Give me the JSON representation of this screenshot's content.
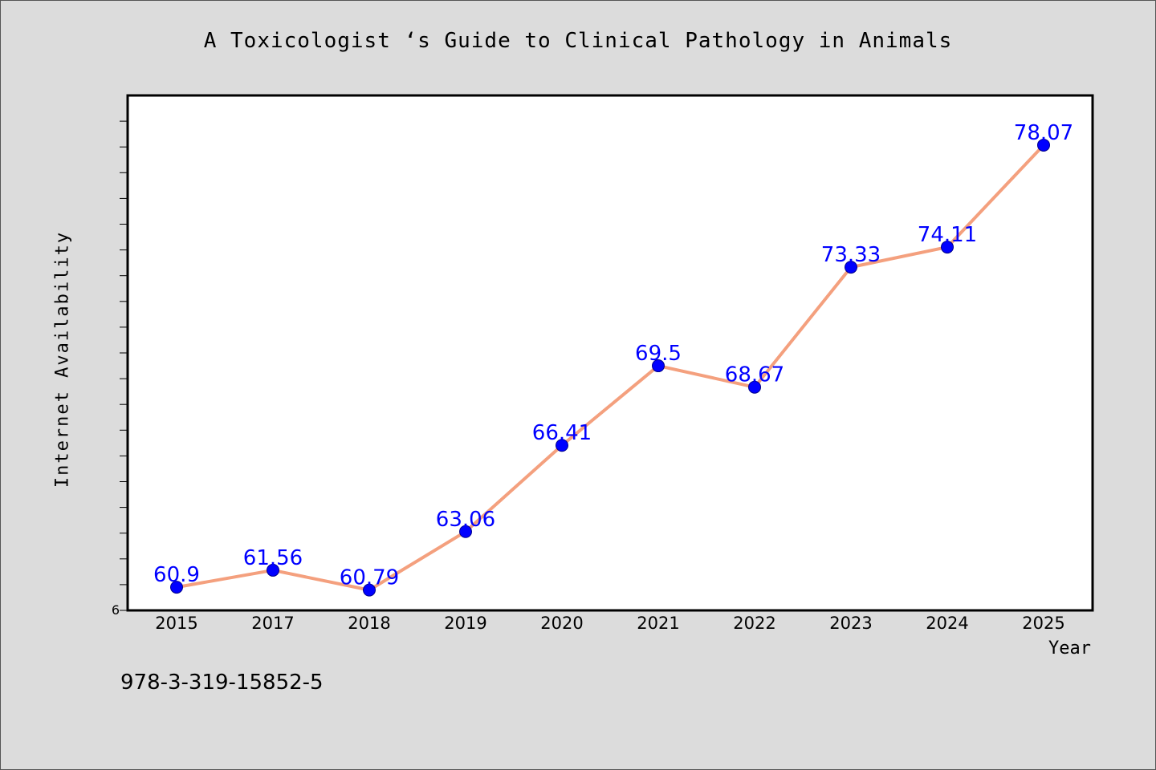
{
  "chart_data": {
    "type": "line",
    "title": "A Toxicologist ‘s Guide to Clinical Pathology in Animals",
    "xlabel": "Year",
    "ylabel": "Internet Availability",
    "categories": [
      "2015",
      "2017",
      "2018",
      "2019",
      "2020",
      "2021",
      "2022",
      "2023",
      "2024",
      "2025"
    ],
    "series": [
      {
        "values": [
          60.9,
          61.56,
          60.79,
          63.06,
          66.41,
          69.5,
          68.67,
          73.33,
          74.11,
          78.07
        ],
        "data_labels": [
          "60.9",
          "61.56",
          "60.79",
          "63.06",
          "66.41",
          "69.5",
          "68.67",
          "73.33",
          "74.11",
          "78.07"
        ]
      }
    ],
    "ylim": [
      60,
      80
    ],
    "y_ticks": [
      "6"
    ],
    "grid": false,
    "legend": "none",
    "line_color": "#f4a07e",
    "marker_color": "#0000ff",
    "label_color": "#0000ff"
  },
  "footer": {
    "code": "978-3-319-15852-5"
  }
}
